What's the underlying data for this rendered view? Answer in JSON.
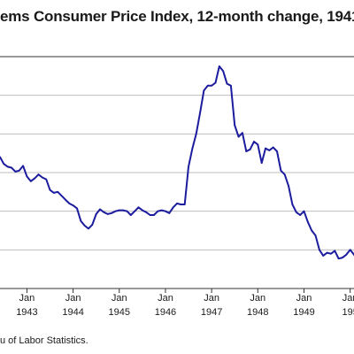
{
  "chart_data": {
    "type": "line",
    "title": "ems Consumer Price Index, 12-month change, 1941",
    "source": "u of Labor Statistics.",
    "colors": {
      "line": "#1c1c9e",
      "grid": "#bdbdbd",
      "axis": "#333333"
    },
    "grid": true,
    "x_range": [
      "1942-06",
      "1950-02"
    ],
    "x_ticks": [
      {
        "month": "Jan",
        "year": "1943",
        "date": "1943-01"
      },
      {
        "month": "Jan",
        "year": "1944",
        "date": "1944-01"
      },
      {
        "month": "Jan",
        "year": "1945",
        "date": "1945-01"
      },
      {
        "month": "Jan",
        "year": "1946",
        "date": "1946-01"
      },
      {
        "month": "Jan",
        "year": "1947",
        "date": "1947-01"
      },
      {
        "month": "Jan",
        "year": "1948",
        "date": "1948-01"
      },
      {
        "month": "Jan",
        "year": "1949",
        "date": "1949-01"
      },
      {
        "month": "Jan",
        "year": "195",
        "date": "1950-01"
      }
    ],
    "ylim": [
      -4,
      20
    ],
    "y_gridlines": [
      0,
      4,
      8,
      12,
      16
    ],
    "series": [
      {
        "start": "1942-06",
        "values": [
          9.6,
          8.9,
          8.6,
          8.5,
          8.1,
          8.2,
          8.7,
          7.6,
          7.1,
          7.4,
          7.8,
          7.5,
          7.3,
          6.2,
          5.9,
          6.0,
          5.6,
          5.2,
          4.8,
          4.6,
          4.3,
          3.0,
          2.5,
          2.2,
          2.6,
          3.7,
          4.2,
          3.9,
          3.7,
          3.8,
          4.0,
          4.1,
          4.1,
          4.0,
          3.6,
          4.0,
          4.4,
          4.1,
          3.9,
          3.6,
          3.6,
          4.0,
          4.1,
          4.0,
          3.8,
          4.4,
          4.8,
          4.7,
          4.7,
          8.6,
          10.5,
          12.0,
          14.2,
          16.5,
          17.0,
          17.0,
          17.3,
          19.0,
          18.5,
          17.2,
          17.0,
          12.9,
          11.7,
          12.1,
          10.2,
          10.4,
          11.2,
          10.9,
          9.0,
          10.5,
          10.3,
          10.6,
          10.2,
          8.2,
          7.8,
          6.6,
          4.7,
          3.9,
          3.6,
          4.0,
          2.9,
          2.0,
          1.5,
          0.0,
          -0.6,
          -0.3,
          -0.4,
          -0.1,
          -0.9,
          -0.8,
          -0.5,
          0.0,
          -0.5,
          -1.0
        ]
      }
    ]
  }
}
